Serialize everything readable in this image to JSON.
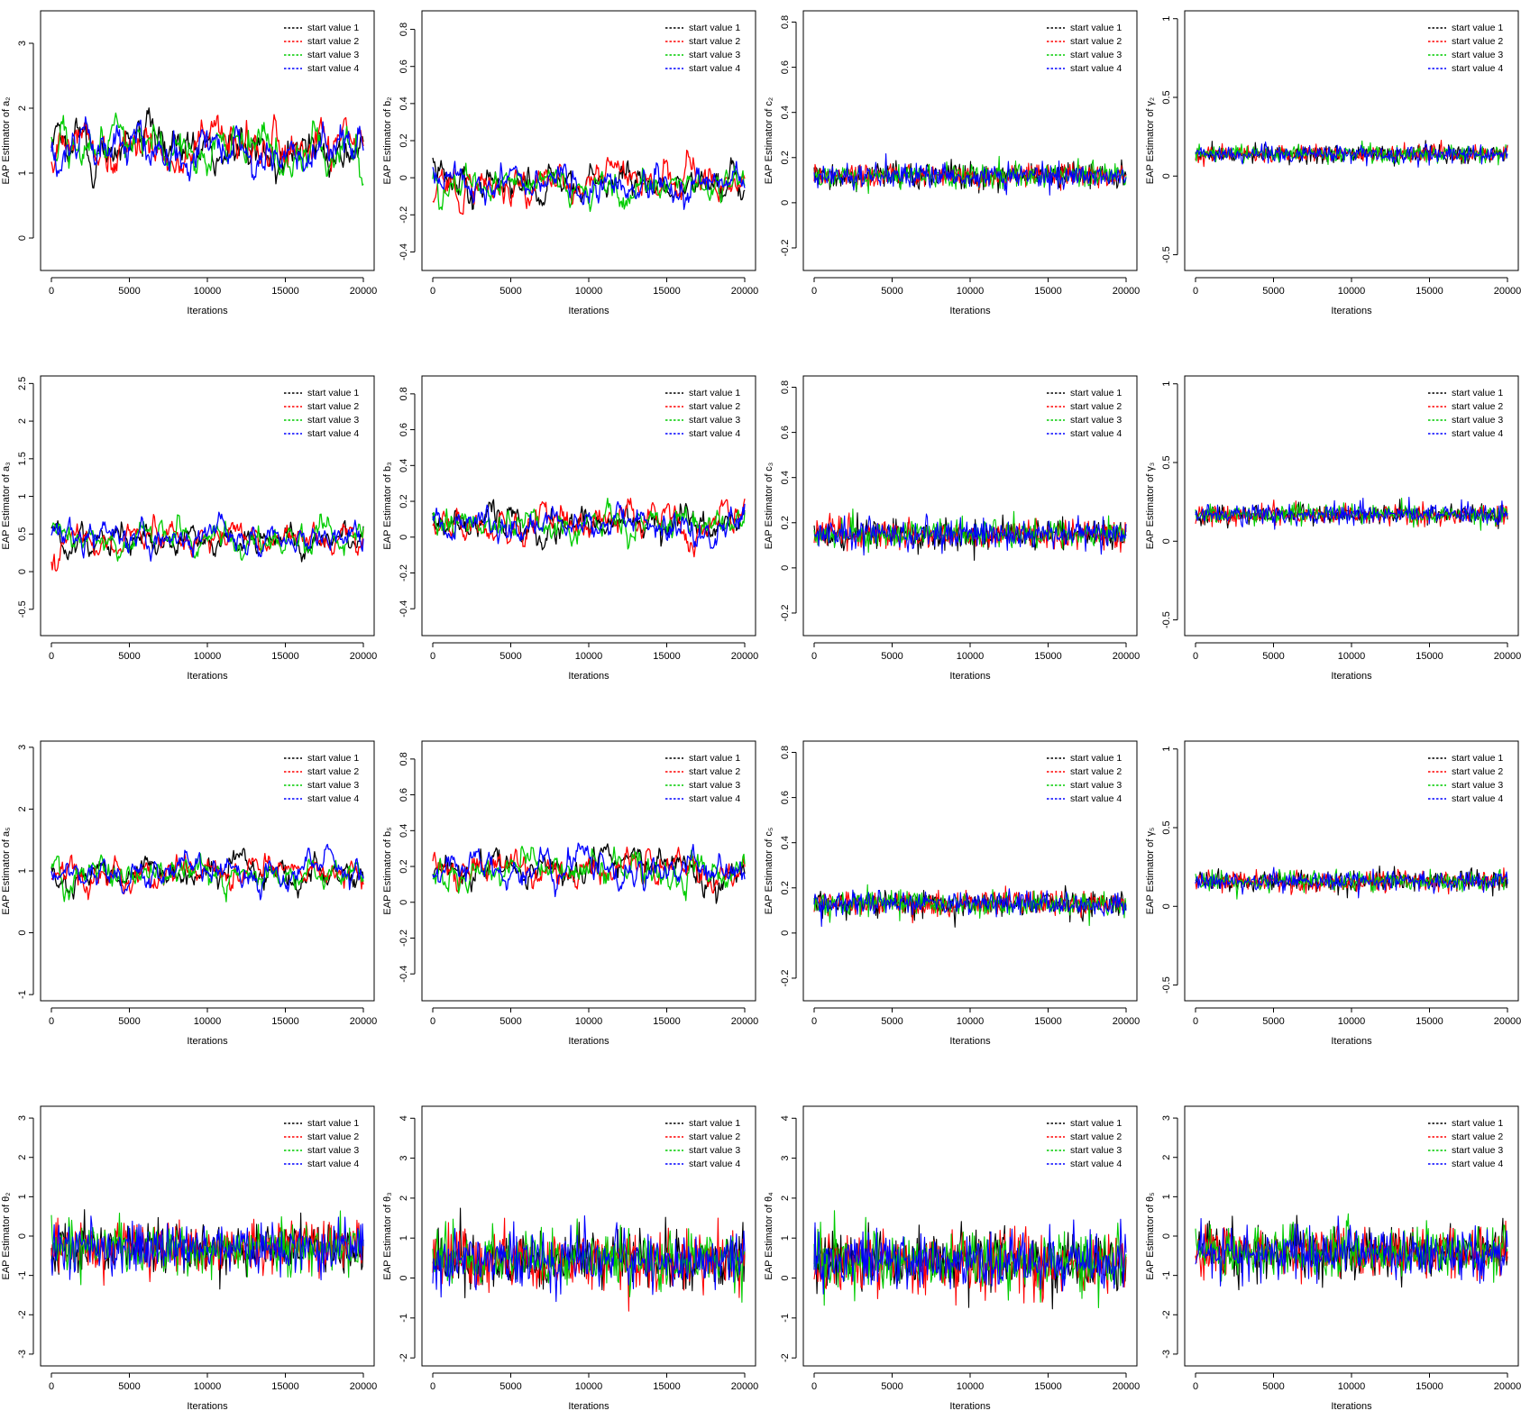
{
  "legend_colors": {
    "start value 1": "#000000",
    "start value 2": "#ff0000",
    "start value 3": "#00cc00",
    "start value 4": "#0000ff"
  },
  "chart_data": [
    {
      "type": "line",
      "ylabel": "EAP Estimator of a₂",
      "xlabel": "Iterations",
      "xlim": [
        0,
        20000
      ],
      "ylim": [
        -0.5,
        3.5
      ],
      "yticks": [
        0,
        1,
        2,
        3
      ],
      "xticks": [
        0,
        5000,
        10000,
        15000,
        20000
      ],
      "legend": [
        "start value 1",
        "start value 2",
        "start value 3",
        "start value 4"
      ],
      "legend_position": "top-right",
      "series": [
        {
          "name": "start value 1",
          "mean": 1.4,
          "spread": 0.35,
          "smooth": true
        },
        {
          "name": "start value 2",
          "mean": 1.4,
          "spread": 0.35,
          "smooth": true
        },
        {
          "name": "start value 3",
          "mean": 1.4,
          "spread": 0.35,
          "smooth": true
        },
        {
          "name": "start value 4",
          "mean": 1.4,
          "spread": 0.35,
          "smooth": true
        }
      ]
    },
    {
      "type": "line",
      "ylabel": "EAP Estimator of b₂",
      "xlabel": "Iterations",
      "xlim": [
        0,
        20000
      ],
      "ylim": [
        -0.5,
        0.9
      ],
      "yticks": [
        -0.4,
        -0.2,
        0.0,
        0.2,
        0.4,
        0.6,
        0.8
      ],
      "xticks": [
        0,
        5000,
        10000,
        15000,
        20000
      ],
      "legend": [
        "start value 1",
        "start value 2",
        "start value 3",
        "start value 4"
      ],
      "legend_position": "top-right",
      "series": [
        {
          "name": "start value 1",
          "mean": -0.03,
          "spread": 0.1,
          "smooth": true
        },
        {
          "name": "start value 2",
          "mean": -0.03,
          "spread": 0.1,
          "smooth": true
        },
        {
          "name": "start value 3",
          "mean": -0.03,
          "spread": 0.1,
          "smooth": true
        },
        {
          "name": "start value 4",
          "mean": -0.03,
          "spread": 0.1,
          "smooth": true
        }
      ]
    },
    {
      "type": "line",
      "ylabel": "EAP Estimator of c₂",
      "xlabel": "Iterations",
      "xlim": [
        0,
        20000
      ],
      "ylim": [
        -0.3,
        0.85
      ],
      "yticks": [
        -0.2,
        0.0,
        0.2,
        0.4,
        0.6,
        0.8
      ],
      "xticks": [
        0,
        5000,
        10000,
        15000,
        20000
      ],
      "legend": [
        "start value 1",
        "start value 2",
        "start value 3",
        "start value 4"
      ],
      "legend_position": "top-right",
      "series": [
        {
          "name": "start value 1",
          "mean": 0.12,
          "spread": 0.06,
          "smooth": false
        },
        {
          "name": "start value 2",
          "mean": 0.12,
          "spread": 0.06,
          "smooth": false
        },
        {
          "name": "start value 3",
          "mean": 0.12,
          "spread": 0.06,
          "smooth": false
        },
        {
          "name": "start value 4",
          "mean": 0.12,
          "spread": 0.06,
          "smooth": false
        }
      ]
    },
    {
      "type": "line",
      "ylabel": "EAP Estimator of γ₂",
      "xlabel": "Iterations",
      "xlim": [
        0,
        20000
      ],
      "ylim": [
        -0.6,
        1.05
      ],
      "yticks": [
        -0.5,
        0.0,
        0.5,
        1.0
      ],
      "xticks": [
        0,
        5000,
        10000,
        15000,
        20000
      ],
      "legend": [
        "start value 1",
        "start value 2",
        "start value 3",
        "start value 4"
      ],
      "legend_position": "top-right",
      "series": [
        {
          "name": "start value 1",
          "mean": 0.14,
          "spread": 0.06,
          "smooth": false
        },
        {
          "name": "start value 2",
          "mean": 0.14,
          "spread": 0.06,
          "smooth": false
        },
        {
          "name": "start value 3",
          "mean": 0.14,
          "spread": 0.06,
          "smooth": false
        },
        {
          "name": "start value 4",
          "mean": 0.14,
          "spread": 0.06,
          "smooth": false
        }
      ]
    },
    {
      "type": "line",
      "ylabel": "EAP Estimator of a₃",
      "xlabel": "Iterations",
      "xlim": [
        0,
        20000
      ],
      "ylim": [
        -0.85,
        2.6
      ],
      "yticks": [
        -0.5,
        0.0,
        0.5,
        1.0,
        1.5,
        2.0,
        2.5
      ],
      "xticks": [
        0,
        5000,
        10000,
        15000,
        20000
      ],
      "legend": [
        "start value 1",
        "start value 2",
        "start value 3",
        "start value 4"
      ],
      "legend_position": "top-right",
      "series": [
        {
          "name": "start value 1",
          "mean": 0.45,
          "spread": 0.2,
          "smooth": true
        },
        {
          "name": "start value 2",
          "mean": 0.45,
          "spread": 0.2,
          "smooth": true
        },
        {
          "name": "start value 3",
          "mean": 0.45,
          "spread": 0.2,
          "smooth": true
        },
        {
          "name": "start value 4",
          "mean": 0.45,
          "spread": 0.2,
          "smooth": true
        }
      ]
    },
    {
      "type": "line",
      "ylabel": "EAP Estimator of b₃",
      "xlabel": "Iterations",
      "xlim": [
        0,
        20000
      ],
      "ylim": [
        -0.55,
        0.9
      ],
      "yticks": [
        -0.4,
        -0.2,
        0.0,
        0.2,
        0.4,
        0.6,
        0.8
      ],
      "xticks": [
        0,
        5000,
        10000,
        15000,
        20000
      ],
      "legend": [
        "start value 1",
        "start value 2",
        "start value 3",
        "start value 4"
      ],
      "legend_position": "top-right",
      "series": [
        {
          "name": "start value 1",
          "mean": 0.08,
          "spread": 0.1,
          "smooth": true
        },
        {
          "name": "start value 2",
          "mean": 0.08,
          "spread": 0.1,
          "smooth": true
        },
        {
          "name": "start value 3",
          "mean": 0.08,
          "spread": 0.1,
          "smooth": true
        },
        {
          "name": "start value 4",
          "mean": 0.08,
          "spread": 0.1,
          "smooth": true
        }
      ]
    },
    {
      "type": "line",
      "ylabel": "EAP Estimator of c₃",
      "xlabel": "Iterations",
      "xlim": [
        0,
        20000
      ],
      "ylim": [
        -0.3,
        0.85
      ],
      "yticks": [
        -0.2,
        0.0,
        0.2,
        0.4,
        0.6,
        0.8
      ],
      "xticks": [
        0,
        5000,
        10000,
        15000,
        20000
      ],
      "legend": [
        "start value 1",
        "start value 2",
        "start value 3",
        "start value 4"
      ],
      "legend_position": "top-right",
      "series": [
        {
          "name": "start value 1",
          "mean": 0.15,
          "spread": 0.07,
          "smooth": false
        },
        {
          "name": "start value 2",
          "mean": 0.15,
          "spread": 0.07,
          "smooth": false
        },
        {
          "name": "start value 3",
          "mean": 0.15,
          "spread": 0.07,
          "smooth": false
        },
        {
          "name": "start value 4",
          "mean": 0.15,
          "spread": 0.07,
          "smooth": false
        }
      ]
    },
    {
      "type": "line",
      "ylabel": "EAP Estimator of γ₃",
      "xlabel": "Iterations",
      "xlim": [
        0,
        20000
      ],
      "ylim": [
        -0.6,
        1.05
      ],
      "yticks": [
        -0.5,
        0.0,
        0.5,
        1.0
      ],
      "xticks": [
        0,
        5000,
        10000,
        15000,
        20000
      ],
      "legend": [
        "start value 1",
        "start value 2",
        "start value 3",
        "start value 4"
      ],
      "legend_position": "top-right",
      "series": [
        {
          "name": "start value 1",
          "mean": 0.17,
          "spread": 0.07,
          "smooth": false
        },
        {
          "name": "start value 2",
          "mean": 0.17,
          "spread": 0.07,
          "smooth": false
        },
        {
          "name": "start value 3",
          "mean": 0.17,
          "spread": 0.07,
          "smooth": false
        },
        {
          "name": "start value 4",
          "mean": 0.17,
          "spread": 0.07,
          "smooth": false
        }
      ]
    },
    {
      "type": "line",
      "ylabel": "EAP Estimator of a₅",
      "xlabel": "Iterations",
      "xlim": [
        0,
        20000
      ],
      "ylim": [
        -1.1,
        3.1
      ],
      "yticks": [
        -1,
        0,
        1,
        2,
        3
      ],
      "xticks": [
        0,
        5000,
        10000,
        15000,
        20000
      ],
      "legend": [
        "start value 1",
        "start value 2",
        "start value 3",
        "start value 4"
      ],
      "legend_position": "top-right",
      "series": [
        {
          "name": "start value 1",
          "mean": 0.95,
          "spread": 0.25,
          "smooth": true
        },
        {
          "name": "start value 2",
          "mean": 0.95,
          "spread": 0.25,
          "smooth": true
        },
        {
          "name": "start value 3",
          "mean": 0.95,
          "spread": 0.25,
          "smooth": true
        },
        {
          "name": "start value 4",
          "mean": 0.95,
          "spread": 0.25,
          "smooth": true
        }
      ]
    },
    {
      "type": "line",
      "ylabel": "EAP Estimator of b₅",
      "xlabel": "Iterations",
      "xlim": [
        0,
        20000
      ],
      "ylim": [
        -0.55,
        0.9
      ],
      "yticks": [
        -0.4,
        -0.2,
        0.0,
        0.2,
        0.4,
        0.6,
        0.8
      ],
      "xticks": [
        0,
        5000,
        10000,
        15000,
        20000
      ],
      "legend": [
        "start value 1",
        "start value 2",
        "start value 3",
        "start value 4"
      ],
      "legend_position": "top-right",
      "series": [
        {
          "name": "start value 1",
          "mean": 0.18,
          "spread": 0.1,
          "smooth": true
        },
        {
          "name": "start value 2",
          "mean": 0.18,
          "spread": 0.1,
          "smooth": true
        },
        {
          "name": "start value 3",
          "mean": 0.18,
          "spread": 0.1,
          "smooth": true
        },
        {
          "name": "start value 4",
          "mean": 0.18,
          "spread": 0.1,
          "smooth": true
        }
      ]
    },
    {
      "type": "line",
      "ylabel": "EAP Estimator of c₅",
      "xlabel": "Iterations",
      "xlim": [
        0,
        20000
      ],
      "ylim": [
        -0.3,
        0.85
      ],
      "yticks": [
        -0.2,
        0.0,
        0.2,
        0.4,
        0.6,
        0.8
      ],
      "xticks": [
        0,
        5000,
        10000,
        15000,
        20000
      ],
      "legend": [
        "start value 1",
        "start value 2",
        "start value 3",
        "start value 4"
      ],
      "legend_position": "top-right",
      "series": [
        {
          "name": "start value 1",
          "mean": 0.13,
          "spread": 0.06,
          "smooth": false
        },
        {
          "name": "start value 2",
          "mean": 0.13,
          "spread": 0.06,
          "smooth": false
        },
        {
          "name": "start value 3",
          "mean": 0.13,
          "spread": 0.06,
          "smooth": false
        },
        {
          "name": "start value 4",
          "mean": 0.13,
          "spread": 0.06,
          "smooth": false
        }
      ]
    },
    {
      "type": "line",
      "ylabel": "EAP Estimator of γ₅",
      "xlabel": "Iterations",
      "xlim": [
        0,
        20000
      ],
      "ylim": [
        -0.6,
        1.05
      ],
      "yticks": [
        -0.5,
        0.0,
        0.5,
        1.0
      ],
      "xticks": [
        0,
        5000,
        10000,
        15000,
        20000
      ],
      "legend": [
        "start value 1",
        "start value 2",
        "start value 3",
        "start value 4"
      ],
      "legend_position": "top-right",
      "series": [
        {
          "name": "start value 1",
          "mean": 0.16,
          "spread": 0.07,
          "smooth": false
        },
        {
          "name": "start value 2",
          "mean": 0.16,
          "spread": 0.07,
          "smooth": false
        },
        {
          "name": "start value 3",
          "mean": 0.16,
          "spread": 0.07,
          "smooth": false
        },
        {
          "name": "start value 4",
          "mean": 0.16,
          "spread": 0.07,
          "smooth": false
        }
      ]
    },
    {
      "type": "line",
      "ylabel": "EAP Estimator of θ₂",
      "xlabel": "Iterations",
      "xlim": [
        0,
        20000
      ],
      "ylim": [
        -3.3,
        3.3
      ],
      "yticks": [
        -3,
        -2,
        -1,
        0,
        1,
        2,
        3
      ],
      "xticks": [
        0,
        5000,
        10000,
        15000,
        20000
      ],
      "legend": [
        "start value 1",
        "start value 2",
        "start value 3",
        "start value 4"
      ],
      "legend_position": "top-right",
      "series": [
        {
          "name": "start value 1",
          "mean": -0.3,
          "spread": 0.7,
          "smooth": false
        },
        {
          "name": "start value 2",
          "mean": -0.3,
          "spread": 0.7,
          "smooth": false
        },
        {
          "name": "start value 3",
          "mean": -0.3,
          "spread": 0.7,
          "smooth": false
        },
        {
          "name": "start value 4",
          "mean": -0.3,
          "spread": 0.7,
          "smooth": false
        }
      ]
    },
    {
      "type": "line",
      "ylabel": "EAP Estimator of θ₃",
      "xlabel": "Iterations",
      "xlim": [
        0,
        20000
      ],
      "ylim": [
        -2.2,
        4.3
      ],
      "yticks": [
        -2,
        -1,
        0,
        1,
        2,
        3,
        4
      ],
      "xticks": [
        0,
        5000,
        10000,
        15000,
        20000
      ],
      "legend": [
        "start value 1",
        "start value 2",
        "start value 3",
        "start value 4"
      ],
      "legend_position": "top-right",
      "series": [
        {
          "name": "start value 1",
          "mean": 0.45,
          "spread": 0.8,
          "smooth": false
        },
        {
          "name": "start value 2",
          "mean": 0.45,
          "spread": 0.8,
          "smooth": false
        },
        {
          "name": "start value 3",
          "mean": 0.45,
          "spread": 0.8,
          "smooth": false
        },
        {
          "name": "start value 4",
          "mean": 0.45,
          "spread": 0.8,
          "smooth": false
        }
      ]
    },
    {
      "type": "line",
      "ylabel": "EAP Estimator of θ₄",
      "xlabel": "Iterations",
      "xlim": [
        0,
        20000
      ],
      "ylim": [
        -2.2,
        4.3
      ],
      "yticks": [
        -2,
        -1,
        0,
        1,
        2,
        3,
        4
      ],
      "xticks": [
        0,
        5000,
        10000,
        15000,
        20000
      ],
      "legend": [
        "start value 1",
        "start value 2",
        "start value 3",
        "start value 4"
      ],
      "legend_position": "top-right",
      "series": [
        {
          "name": "start value 1",
          "mean": 0.4,
          "spread": 0.8,
          "smooth": false
        },
        {
          "name": "start value 2",
          "mean": 0.4,
          "spread": 0.8,
          "smooth": false
        },
        {
          "name": "start value 3",
          "mean": 0.4,
          "spread": 0.8,
          "smooth": false
        },
        {
          "name": "start value 4",
          "mean": 0.4,
          "spread": 0.8,
          "smooth": false
        }
      ]
    },
    {
      "type": "line",
      "ylabel": "EAP Estimator of θ₅",
      "xlabel": "Iterations",
      "xlim": [
        0,
        20000
      ],
      "ylim": [
        -3.3,
        3.3
      ],
      "yticks": [
        -3,
        -2,
        -1,
        0,
        1,
        2,
        3
      ],
      "xticks": [
        0,
        5000,
        10000,
        15000,
        20000
      ],
      "legend": [
        "start value 1",
        "start value 2",
        "start value 3",
        "start value 4"
      ],
      "legend_position": "top-right",
      "series": [
        {
          "name": "start value 1",
          "mean": -0.4,
          "spread": 0.7,
          "smooth": false
        },
        {
          "name": "start value 2",
          "mean": -0.4,
          "spread": 0.7,
          "smooth": false
        },
        {
          "name": "start value 3",
          "mean": -0.4,
          "spread": 0.7,
          "smooth": false
        },
        {
          "name": "start value 4",
          "mean": -0.4,
          "spread": 0.7,
          "smooth": false
        }
      ]
    }
  ]
}
